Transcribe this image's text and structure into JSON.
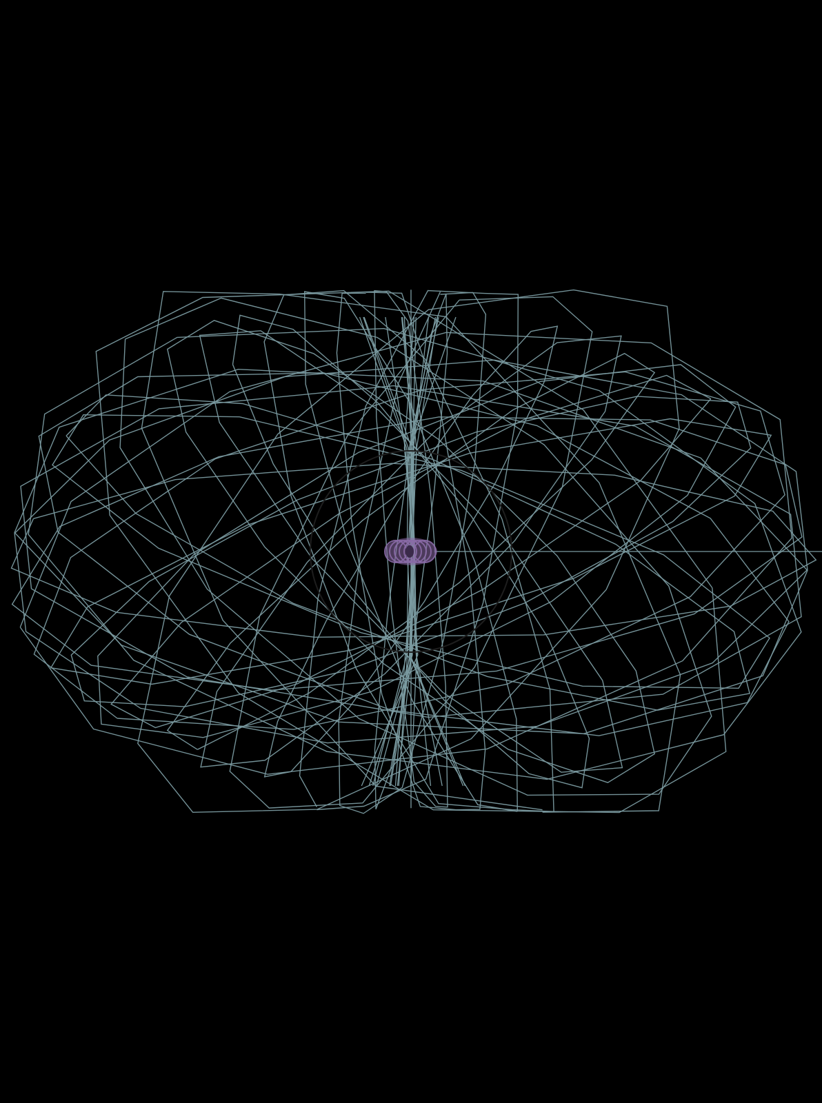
{
  "scene": {
    "background_color": "#000000",
    "wire_color": "#7a9aa0",
    "core_color": "#8a6aa6",
    "core_dark_color": "#3a2a4a",
    "ring_color": "#1e1e1e",
    "wire_loops": 34,
    "core_rings": 7
  }
}
